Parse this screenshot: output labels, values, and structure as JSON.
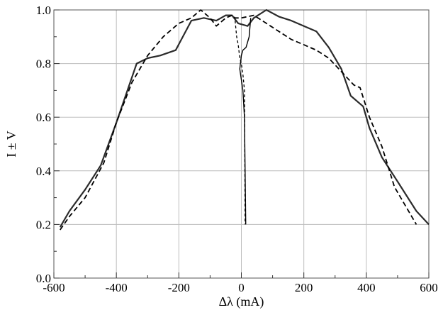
{
  "chart_data": {
    "type": "line",
    "title": "",
    "xlabel": "Δλ (mA)",
    "ylabel": "I ± V",
    "xlim": [
      -600,
      600
    ],
    "ylim": [
      0.0,
      1.0
    ],
    "xticks": [
      -600,
      -400,
      -200,
      0,
      200,
      400,
      600
    ],
    "xtick_labels": [
      "-600",
      "-400",
      "-200",
      "0",
      "200",
      "400",
      "600"
    ],
    "yticks": [
      0.0,
      0.2,
      0.4,
      0.6,
      0.8,
      1.0
    ],
    "ytick_labels": [
      "0.0",
      "0.2",
      "0.4",
      "0.6",
      "0.8",
      "1.0"
    ],
    "grid": true,
    "series": [
      {
        "style": "solid-thick",
        "x": [
          -580,
          -550,
          -500,
          -450,
          -400,
          -335,
          -300,
          -260,
          -210,
          -160,
          -120,
          -80,
          -50,
          -30,
          -10,
          20,
          40,
          80,
          120,
          160,
          200,
          240,
          280,
          320,
          350,
          390,
          410,
          450,
          500,
          560,
          600
        ],
        "y": [
          0.19,
          0.25,
          0.33,
          0.42,
          0.58,
          0.8,
          0.82,
          0.83,
          0.85,
          0.96,
          0.97,
          0.96,
          0.98,
          0.98,
          0.95,
          0.94,
          0.97,
          1.0,
          0.975,
          0.96,
          0.94,
          0.92,
          0.86,
          0.78,
          0.68,
          0.64,
          0.56,
          0.45,
          0.36,
          0.25,
          0.2
        ]
      },
      {
        "style": "dashed",
        "x": [
          -580,
          -550,
          -500,
          -440,
          -400,
          -350,
          -300,
          -250,
          -200,
          -160,
          -130,
          -100,
          -80,
          -50,
          -30,
          -20,
          0,
          40,
          80,
          160,
          200,
          240,
          280,
          320,
          360,
          380,
          410,
          450,
          490,
          560
        ],
        "y": [
          0.18,
          0.23,
          0.3,
          0.43,
          0.58,
          0.73,
          0.83,
          0.9,
          0.95,
          0.97,
          1.0,
          0.97,
          0.94,
          0.97,
          0.98,
          0.97,
          0.97,
          0.98,
          0.95,
          0.89,
          0.87,
          0.85,
          0.82,
          0.77,
          0.72,
          0.71,
          0.6,
          0.49,
          0.34,
          0.2
        ]
      },
      {
        "style": "dashed-thin",
        "x": [
          -20,
          -15,
          -10,
          -5,
          0,
          5,
          10,
          12
        ],
        "y": [
          0.96,
          0.9,
          0.87,
          0.82,
          0.8,
          0.76,
          0.7,
          0.2
        ]
      },
      {
        "style": "solid-thin",
        "x": [
          30,
          25,
          15,
          5,
          0,
          -5,
          5,
          10,
          12,
          14
        ],
        "y": [
          0.97,
          0.9,
          0.86,
          0.85,
          0.83,
          0.78,
          0.7,
          0.6,
          0.4,
          0.2
        ]
      }
    ]
  }
}
